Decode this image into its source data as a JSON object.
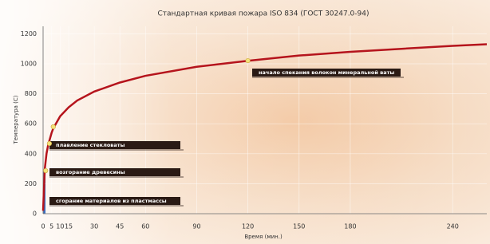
{
  "chart_data": {
    "type": "line",
    "title": "Стандартная кривая пожара ISO 834 (ГОСТ 30247.0-94)",
    "x_label": "Время (мин.)",
    "y_label": "Температура (С)",
    "x": [
      0,
      1,
      2,
      3,
      5,
      6,
      10,
      15,
      20,
      30,
      45,
      60,
      90,
      120,
      150,
      180,
      210,
      240,
      260
    ],
    "values": [
      20,
      300,
      400,
      460,
      540,
      570,
      650,
      710,
      755,
      815,
      875,
      920,
      980,
      1020,
      1055,
      1080,
      1100,
      1120,
      1130
    ],
    "color": "#b5141c",
    "markers": {
      "x": [
        1.5,
        3.7,
        6,
        120
      ],
      "values": [
        287,
        468,
        580,
        1021
      ],
      "color": "#f3e27a"
    },
    "annotations": [
      "начало спекания волокон минеральной ваты",
      "плавление стекловаты",
      "возгорание древесины",
      "сгорание материалов из пластмассы"
    ],
    "xlim": [
      0,
      260
    ],
    "xticks": [
      0,
      5,
      10,
      15,
      30,
      45,
      60,
      90,
      120,
      150,
      180,
      240
    ],
    "ylim": [
      0,
      1250
    ],
    "yticks": [
      0,
      200,
      400,
      600,
      800,
      1000,
      1200
    ],
    "grid": true
  }
}
